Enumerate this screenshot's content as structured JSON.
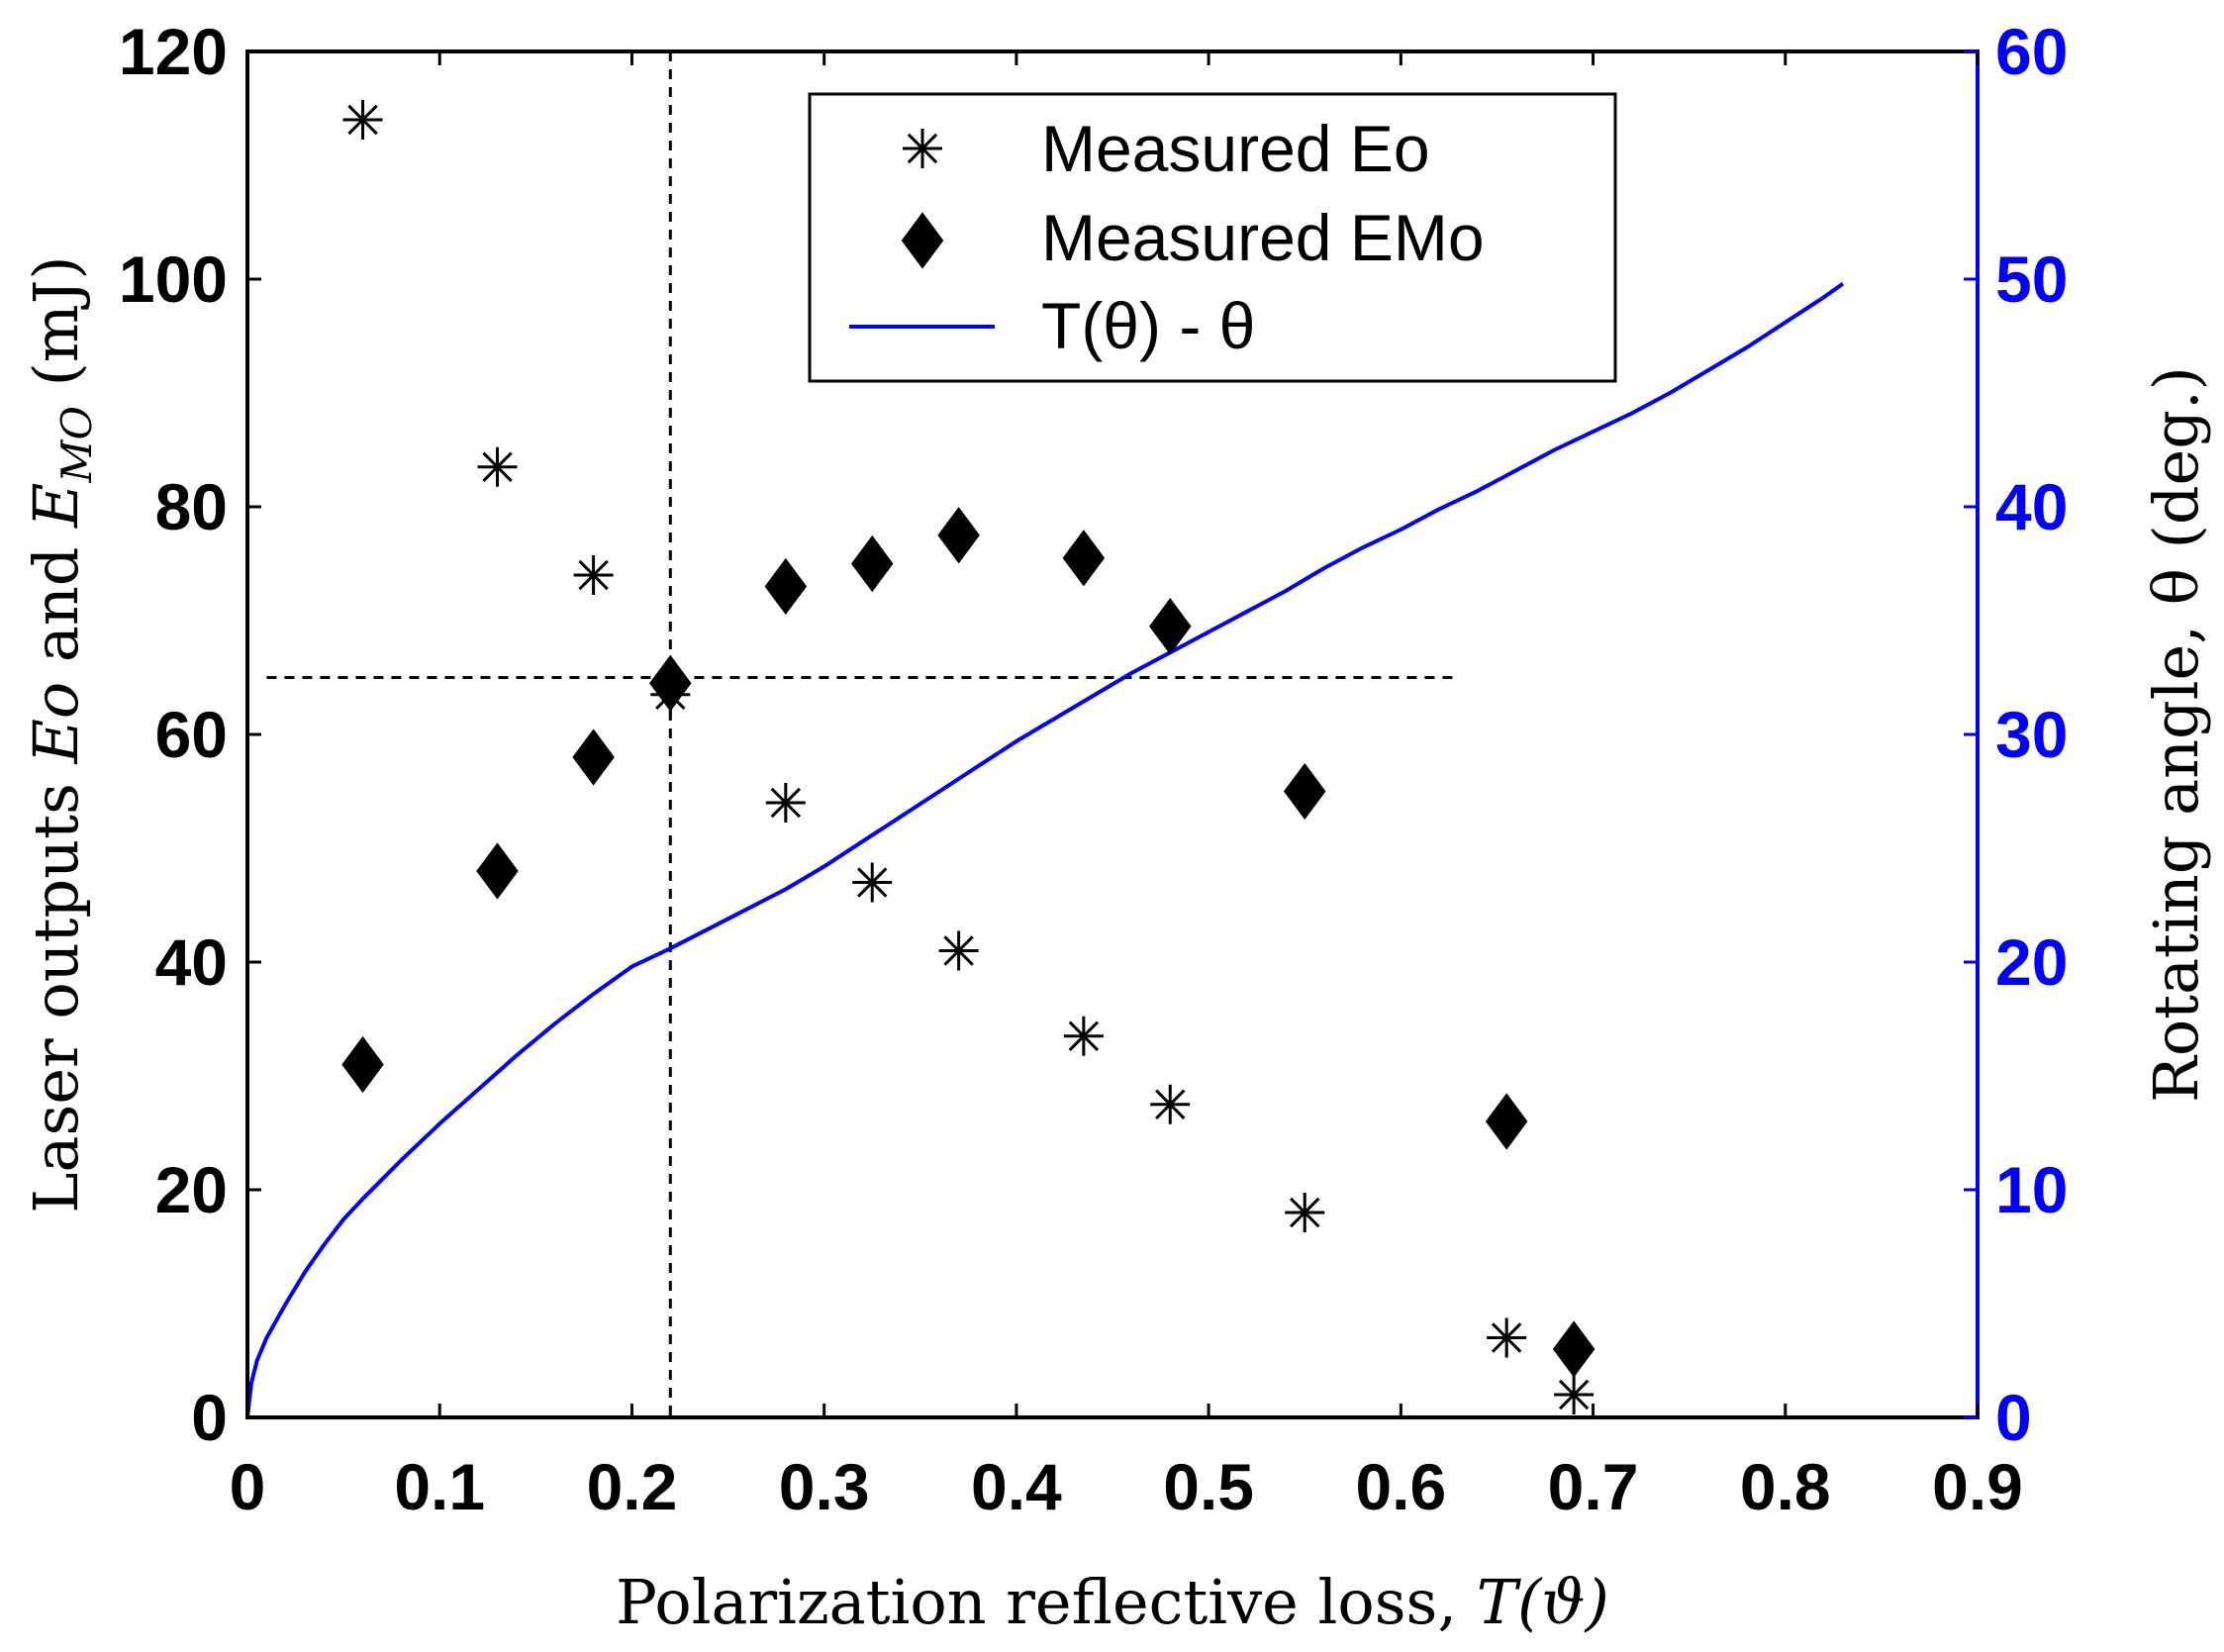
{
  "chart_data": {
    "type": "scatter",
    "title": "",
    "xlabel": {
      "main": "Polarization reflective loss, ",
      "math": "T(ϑ)"
    },
    "ylabel": {
      "prefix": "Laser outputs ",
      "var1": "Eo",
      "middle": " and ",
      "var2": "E",
      "var2_sub": "MO",
      "suffix": " (mJ)"
    },
    "y2label": "Rotating angle, θ (deg.)",
    "xlim": [
      0,
      0.9
    ],
    "ylim": [
      0,
      120
    ],
    "y2lim": [
      0,
      60
    ],
    "xticks": [
      0,
      0.1,
      0.2,
      0.3,
      0.4,
      0.5,
      0.6,
      0.7,
      0.8,
      0.9
    ],
    "xtick_labels": [
      "0",
      "0.1",
      "0.2",
      "0.3",
      "0.4",
      "0.5",
      "0.6",
      "0.7",
      "0.8",
      "0.9"
    ],
    "yticks": [
      0,
      20,
      40,
      60,
      80,
      100,
      120
    ],
    "ytick_labels": [
      "0",
      "20",
      "40",
      "60",
      "80",
      "100",
      "120"
    ],
    "y2ticks": [
      0,
      10,
      20,
      30,
      40,
      50,
      60
    ],
    "y2tick_labels": [
      "0",
      "10",
      "20",
      "30",
      "40",
      "50",
      "60"
    ],
    "grid": false,
    "legend_position": "top-center",
    "colors": {
      "axis_left": "#000000",
      "axis_right": "#0000ff",
      "curve": "#0000ff",
      "markers": "#000000"
    },
    "series": [
      {
        "name": "Measured Eo",
        "marker": "asterisk",
        "axis": "left",
        "x": [
          0.06,
          0.13,
          0.18,
          0.22,
          0.28,
          0.325,
          0.37,
          0.435,
          0.48,
          0.55,
          0.655,
          0.69
        ],
        "y": [
          114,
          83.5,
          74,
          63.5,
          54,
          47,
          41,
          33.5,
          27.5,
          18,
          7,
          2
        ]
      },
      {
        "name": "Measured EMo",
        "marker": "diamond",
        "axis": "left",
        "x": [
          0.06,
          0.13,
          0.18,
          0.22,
          0.28,
          0.325,
          0.37,
          0.435,
          0.48,
          0.55,
          0.655,
          0.69
        ],
        "y": [
          31,
          48,
          58,
          64.5,
          73,
          75,
          77.5,
          75.5,
          69.5,
          55,
          26,
          6
        ]
      },
      {
        "name": "T(θ) - θ",
        "marker": "line",
        "axis": "right",
        "x": [
          0,
          0.002,
          0.005,
          0.01,
          0.02,
          0.03,
          0.04,
          0.05,
          0.06,
          0.08,
          0.1,
          0.12,
          0.14,
          0.16,
          0.18,
          0.2,
          0.22,
          0.25,
          0.28,
          0.3,
          0.32,
          0.34,
          0.36,
          0.38,
          0.4,
          0.42,
          0.44,
          0.46,
          0.48,
          0.5,
          0.52,
          0.54,
          0.56,
          0.58,
          0.6,
          0.62,
          0.64,
          0.66,
          0.68,
          0.7,
          0.72,
          0.74,
          0.76,
          0.78,
          0.8,
          0.82,
          0.83
        ],
        "y": [
          0,
          1.5,
          2.5,
          3.5,
          5,
          6.4,
          7.6,
          8.7,
          9.6,
          11.3,
          12.9,
          14.4,
          15.9,
          17.3,
          18.6,
          19.8,
          20.6,
          21.9,
          23.2,
          24.2,
          25.3,
          26.4,
          27.5,
          28.6,
          29.7,
          30.7,
          31.7,
          32.7,
          33.6,
          34.5,
          35.4,
          36.3,
          37.3,
          38.2,
          39,
          39.9,
          40.7,
          41.6,
          42.5,
          43.3,
          44.1,
          45,
          46,
          47,
          48.1,
          49.2,
          49.8
        ]
      }
    ],
    "reference_lines": [
      {
        "orientation": "vertical",
        "axis": "x",
        "value": 0.22,
        "style": "dashed",
        "y_range": [
          0,
          120
        ]
      },
      {
        "orientation": "horizontal",
        "axis": "y",
        "value": 65,
        "style": "dashed",
        "x_range": [
          0.01,
          0.628
        ]
      }
    ]
  }
}
